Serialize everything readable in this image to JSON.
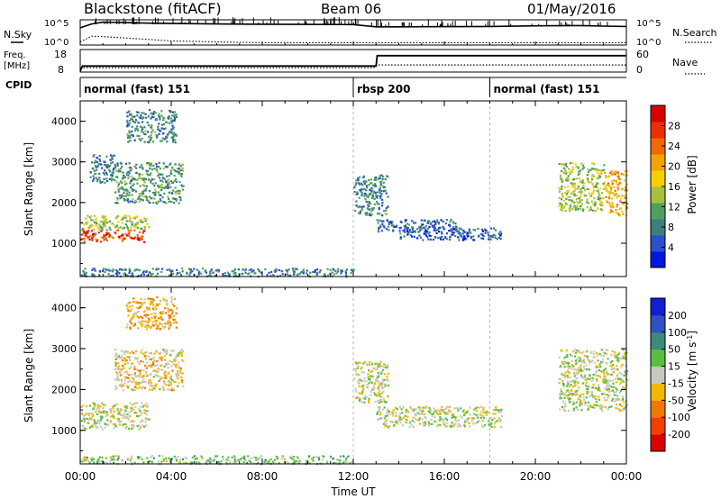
{
  "header": {
    "station": "Blackstone (fitACF)",
    "beam": "Beam 06",
    "date": "01/May/2016"
  },
  "labels": {
    "nsky": "N.Sky",
    "nsearch": "N.Search",
    "freq_line1": "Freq.",
    "freq_line2": "[MHz]",
    "nave": "Nave",
    "cpid": "CPID",
    "y_top_max": "10^5",
    "y_top_min": "10^0",
    "y_right_max": "10^5",
    "y_right_min": "10^0",
    "freq_hi": "18",
    "freq_lo": "8",
    "nave_hi": "60",
    "nave_lo": "0"
  },
  "cpid_segments": [
    {
      "label": "normal (fast) 151",
      "start_h": 0,
      "end_h": 12
    },
    {
      "label": "rbsp 200",
      "start_h": 12,
      "end_h": 18
    },
    {
      "label": "normal (fast) 151",
      "start_h": 18,
      "end_h": 24
    }
  ],
  "chart_data": [
    {
      "type": "line",
      "panel": "noise",
      "x_unit": "hours UT",
      "ylim": [
        "10^0",
        "10^5"
      ],
      "series": [
        {
          "name": "N.Sky",
          "x": [
            0,
            0.5,
            1,
            2,
            3,
            4,
            6,
            8,
            10,
            12,
            13,
            14,
            16,
            18,
            20,
            22,
            23,
            24
          ],
          "y": [
            3000,
            20000,
            50000,
            40000,
            30000,
            25000,
            20000,
            18000,
            16000,
            15000,
            5000,
            5000,
            5500,
            6000,
            8000,
            9000,
            7000,
            6000
          ]
        },
        {
          "name": "N.Search",
          "x": [
            0,
            0.5,
            1,
            2,
            3,
            4,
            6,
            8,
            10,
            12,
            13,
            14,
            16,
            18,
            20,
            22,
            24
          ],
          "y": [
            3,
            50,
            40,
            20,
            10,
            5,
            3,
            2,
            2,
            2,
            2,
            2,
            2,
            2,
            2,
            2,
            2
          ]
        }
      ]
    },
    {
      "type": "line",
      "panel": "frequency",
      "x_unit": "hours UT",
      "ylim": [
        8,
        18
      ],
      "series": [
        {
          "name": "Freq.",
          "x": [
            0,
            0.1,
            13.0,
            13.05,
            24
          ],
          "y": [
            8,
            10.5,
            10.5,
            15.5,
            15.5
          ]
        },
        {
          "name": "Nave",
          "x": [
            0,
            12.9,
            13.0,
            24
          ],
          "y": [
            10,
            10,
            18,
            18
          ]
        }
      ]
    },
    {
      "type": "heatmap",
      "panel": "power",
      "title": "",
      "xlabel": "",
      "ylabel": "Slant Range [km]",
      "ylim": [
        180,
        4500
      ],
      "colorbar": {
        "label": "Power [dB]",
        "ticks": [
          4,
          8,
          12,
          16,
          20,
          24,
          28
        ]
      },
      "bands": [
        {
          "x_start": 0.0,
          "x_end": 2.8,
          "range_start": 1050,
          "range_end": 1350,
          "level": 26
        },
        {
          "x_start": 0.0,
          "x_end": 3.0,
          "range_start": 1350,
          "range_end": 1700,
          "level": 14
        },
        {
          "x_start": 1.5,
          "x_end": 4.5,
          "range_start": 2000,
          "range_end": 3000,
          "level": 10
        },
        {
          "x_start": 2.0,
          "x_end": 4.2,
          "range_start": 3500,
          "range_end": 4300,
          "level": 9
        },
        {
          "x_start": 0.4,
          "x_end": 1.5,
          "range_start": 2500,
          "range_end": 3200,
          "level": 8
        },
        {
          "x_start": 12.0,
          "x_end": 13.5,
          "range_start": 1700,
          "range_end": 2700,
          "level": 9
        },
        {
          "x_start": 13.0,
          "x_end": 16.5,
          "range_start": 1300,
          "range_end": 1600,
          "level": 7
        },
        {
          "x_start": 14.0,
          "x_end": 18.5,
          "range_start": 1100,
          "range_end": 1400,
          "level": 6
        },
        {
          "x_start": 21.0,
          "x_end": 23.0,
          "range_start": 1800,
          "range_end": 3000,
          "level": 14
        },
        {
          "x_start": 23.0,
          "x_end": 24.0,
          "range_start": 1700,
          "range_end": 2800,
          "level": 20
        },
        {
          "x_start": 0.0,
          "x_end": 12.0,
          "range_start": 200,
          "range_end": 400,
          "level": 8
        }
      ]
    },
    {
      "type": "heatmap",
      "panel": "velocity",
      "title": "",
      "xlabel": "Time UT",
      "ylabel": "Slant Range [km]",
      "ylim": [
        180,
        4500
      ],
      "colorbar": {
        "label": "Velocity [m s^-1]",
        "ticks": [
          200,
          100,
          50,
          15,
          -15,
          -50,
          -100,
          -200
        ]
      },
      "x_ticks": [
        "00:00",
        "04:00",
        "08:00",
        "12:00",
        "16:00",
        "20:00",
        "00:00"
      ],
      "bands": [
        {
          "x_start": 0.0,
          "x_end": 3.0,
          "range_start": 1050,
          "range_end": 1700,
          "level": 0
        },
        {
          "x_start": 1.5,
          "x_end": 4.5,
          "range_start": 2000,
          "range_end": 3000,
          "level": -30
        },
        {
          "x_start": 2.0,
          "x_end": 4.2,
          "range_start": 3500,
          "range_end": 4300,
          "level": -60
        },
        {
          "x_start": 12.0,
          "x_end": 13.5,
          "range_start": 1700,
          "range_end": 2700,
          "level": 0
        },
        {
          "x_start": 13.0,
          "x_end": 18.5,
          "range_start": 1100,
          "range_end": 1600,
          "level": 0
        },
        {
          "x_start": 21.0,
          "x_end": 24.0,
          "range_start": 1500,
          "range_end": 3000,
          "level": 0
        },
        {
          "x_start": 0.0,
          "x_end": 12.0,
          "range_start": 200,
          "range_end": 400,
          "level": 30
        }
      ]
    }
  ],
  "power_colors": [
    "#0018e0",
    "#2a4fd0",
    "#3d7f7a",
    "#4fa060",
    "#a4c23c",
    "#f4d000",
    "#f4a400",
    "#f06a00",
    "#e83000",
    "#d80000"
  ],
  "velocity_colors": [
    "#dd0000",
    "#f04000",
    "#f07800",
    "#f4b800",
    "#c8c8c0",
    "#58c040",
    "#3c8a78",
    "#3050c8",
    "#1020d0"
  ],
  "power_ticks": [
    "28",
    "24",
    "20",
    "16",
    "12",
    "8",
    "4"
  ],
  "velocity_ticks": [
    "200",
    "100",
    "50",
    "15",
    "-15",
    "-50",
    "-100",
    "-200"
  ],
  "range_ticks": [
    "4000",
    "3000",
    "2000",
    "1000"
  ],
  "axis_titles": {
    "range": "Slant Range [km]",
    "power": "Power [dB]",
    "velocity": "Velocity [m s",
    "velocity_exp": "-1",
    "velocity_close": "]",
    "time": "Time UT"
  },
  "time_ticks": [
    "00:00",
    "04:00",
    "08:00",
    "12:00",
    "16:00",
    "20:00",
    "00:00"
  ]
}
